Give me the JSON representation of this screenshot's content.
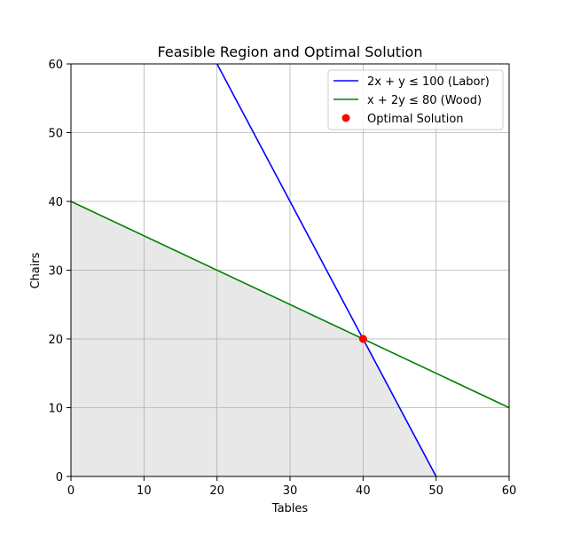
{
  "chart_data": {
    "type": "line",
    "title": "Feasible Region and Optimal Solution",
    "xlabel": "Tables",
    "ylabel": "Chairs",
    "xlim": [
      0,
      60
    ],
    "ylim": [
      0,
      60
    ],
    "xticks": [
      0,
      10,
      20,
      30,
      40,
      50,
      60
    ],
    "yticks": [
      0,
      10,
      20,
      30,
      40,
      50,
      60
    ],
    "grid": true,
    "legend_position": "top-right",
    "series": [
      {
        "name": "2x + y ≤ 100 (Labor)",
        "kind": "line",
        "color": "#0000ff",
        "x": [
          20,
          50
        ],
        "y": [
          60,
          0
        ]
      },
      {
        "name": "x + 2y ≤ 80 (Wood)",
        "kind": "line",
        "color": "#008000",
        "x": [
          0,
          60
        ],
        "y": [
          40,
          10
        ]
      },
      {
        "name": "Optimal Solution",
        "kind": "point",
        "color": "#ff0000",
        "x": [
          40
        ],
        "y": [
          20
        ]
      }
    ],
    "feasible_region": {
      "color": "#e8e8e8",
      "x": [
        0,
        0,
        40,
        50
      ],
      "y": [
        0,
        40,
        20,
        0
      ]
    }
  }
}
